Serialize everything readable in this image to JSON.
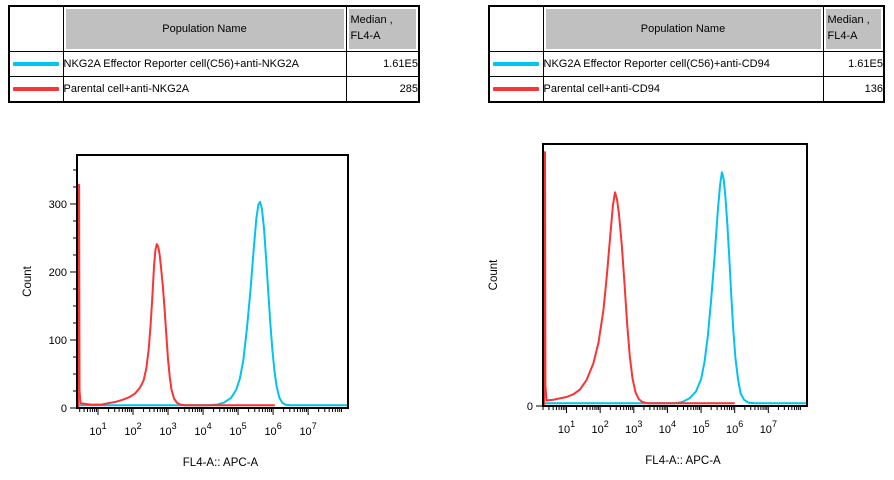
{
  "panels": [
    {
      "table": {
        "headers": {
          "name": "Population Name",
          "median_line1": "Median ,",
          "median_line2": "FL4-A"
        },
        "rows": [
          {
            "color": "#00C3EF",
            "name": "NKG2A Effector Reporter cell(C56)+anti-NKG2A",
            "median": "1.61E5"
          },
          {
            "color": "#F93434",
            "name": "Parental cell+anti-NKG2A",
            "median": "285"
          }
        ]
      }
    },
    {
      "table": {
        "headers": {
          "name": "Population Name",
          "median_line1": "Median ,",
          "median_line2": "FL4-A"
        },
        "rows": [
          {
            "color": "#00C3EF",
            "name": "NKG2A Effector Reporter cell(C56)+anti-CD94",
            "median": "1.61E5"
          },
          {
            "color": "#F93434",
            "name": "Parental cell+anti-CD94",
            "median": "136"
          }
        ]
      }
    }
  ],
  "chart_data": [
    {
      "type": "line",
      "title": "",
      "xlabel": "FL4-A:: APC-A",
      "ylabel": "Count",
      "x_scale": "log10",
      "xlim_log10": [
        0.4,
        8.14
      ],
      "ylim": [
        0,
        372
      ],
      "yticks": [
        0,
        100,
        200,
        300
      ],
      "ytick_minor_step": 25,
      "xticks_log10": [
        1,
        2,
        3,
        4,
        5,
        6,
        7
      ],
      "grid": false,
      "legend_position": "table-above",
      "series": [
        {
          "name": "NKG2A Effector Reporter cell(C56)+anti-NKG2A",
          "color": "#00C3EF",
          "median": "1.61E5",
          "points": [
            [
              0.42,
              4
            ],
            [
              4.2,
              4
            ],
            [
              4.4,
              5
            ],
            [
              4.6,
              8
            ],
            [
              4.8,
              15
            ],
            [
              4.95,
              27
            ],
            [
              5.05,
              43
            ],
            [
              5.15,
              70
            ],
            [
              5.25,
              115
            ],
            [
              5.35,
              170
            ],
            [
              5.45,
              235
            ],
            [
              5.52,
              278
            ],
            [
              5.58,
              299
            ],
            [
              5.63,
              303
            ],
            [
              5.68,
              293
            ],
            [
              5.74,
              264
            ],
            [
              5.8,
              220
            ],
            [
              5.86,
              172
            ],
            [
              5.92,
              125
            ],
            [
              5.98,
              85
            ],
            [
              6.04,
              54
            ],
            [
              6.1,
              32
            ],
            [
              6.18,
              15
            ],
            [
              6.26,
              8
            ],
            [
              6.35,
              5
            ],
            [
              6.5,
              4
            ],
            [
              8.12,
              4
            ]
          ]
        },
        {
          "name": "Parental cell+anti-NKG2A",
          "color": "#F93434",
          "median": "285",
          "points": [
            [
              0.43,
              0
            ],
            [
              0.44,
              328
            ],
            [
              0.46,
              328
            ],
            [
              0.47,
              26
            ],
            [
              0.5,
              7
            ],
            [
              0.8,
              5
            ],
            [
              1.1,
              5
            ],
            [
              1.3,
              7
            ],
            [
              1.5,
              9
            ],
            [
              1.7,
              12
            ],
            [
              1.9,
              16
            ],
            [
              2.05,
              21
            ],
            [
              2.2,
              30
            ],
            [
              2.3,
              40
            ],
            [
              2.38,
              58
            ],
            [
              2.45,
              88
            ],
            [
              2.5,
              120
            ],
            [
              2.55,
              162
            ],
            [
              2.6,
              208
            ],
            [
              2.64,
              232
            ],
            [
              2.68,
              241
            ],
            [
              2.72,
              237
            ],
            [
              2.76,
              226
            ],
            [
              2.8,
              207
            ],
            [
              2.85,
              180
            ],
            [
              2.9,
              147
            ],
            [
              2.95,
              108
            ],
            [
              3.0,
              72
            ],
            [
              3.05,
              45
            ],
            [
              3.1,
              27
            ],
            [
              3.17,
              14
            ],
            [
              3.25,
              8
            ],
            [
              3.35,
              5
            ],
            [
              3.5,
              4
            ],
            [
              6.05,
              4
            ]
          ]
        }
      ]
    },
    {
      "type": "line",
      "title": "",
      "xlabel": "FL4-A:: APC-A",
      "ylabel": "Count",
      "x_scale": "log10",
      "xlim_log10": [
        0.3,
        8.15
      ],
      "ylim": [
        0,
        380
      ],
      "yticks": [
        0
      ],
      "ytick_minor_step": null,
      "xticks_log10": [
        1,
        2,
        3,
        4,
        5,
        6,
        7
      ],
      "grid": false,
      "legend_position": "table-above",
      "series": [
        {
          "name": "NKG2A Effector Reporter cell(C56)+anti-CD94",
          "color": "#00C3EF",
          "median": "1.61E5",
          "points": [
            [
              0.33,
              4
            ],
            [
              4.25,
              4
            ],
            [
              4.45,
              6
            ],
            [
              4.65,
              11
            ],
            [
              4.85,
              21
            ],
            [
              5.0,
              39
            ],
            [
              5.1,
              63
            ],
            [
              5.2,
              101
            ],
            [
              5.3,
              155
            ],
            [
              5.4,
              215
            ],
            [
              5.5,
              285
            ],
            [
              5.57,
              322
            ],
            [
              5.62,
              339
            ],
            [
              5.67,
              330
            ],
            [
              5.72,
              305
            ],
            [
              5.78,
              265
            ],
            [
              5.84,
              215
            ],
            [
              5.9,
              160
            ],
            [
              5.96,
              110
            ],
            [
              6.02,
              70
            ],
            [
              6.1,
              38
            ],
            [
              6.18,
              18
            ],
            [
              6.28,
              9
            ],
            [
              6.4,
              5
            ],
            [
              6.6,
              4
            ],
            [
              8.13,
              4
            ]
          ]
        },
        {
          "name": "Parental cell+anti-CD94",
          "color": "#F93434",
          "median": "136",
          "points": [
            [
              0.33,
              0
            ],
            [
              0.34,
              368
            ],
            [
              0.36,
              368
            ],
            [
              0.37,
              30
            ],
            [
              0.4,
              8
            ],
            [
              0.6,
              9
            ],
            [
              0.8,
              11
            ],
            [
              1.0,
              13
            ],
            [
              1.2,
              17
            ],
            [
              1.4,
              24
            ],
            [
              1.6,
              38
            ],
            [
              1.8,
              62
            ],
            [
              1.95,
              92
            ],
            [
              2.1,
              140
            ],
            [
              2.2,
              190
            ],
            [
              2.3,
              248
            ],
            [
              2.38,
              292
            ],
            [
              2.44,
              310
            ],
            [
              2.5,
              300
            ],
            [
              2.56,
              278
            ],
            [
              2.64,
              235
            ],
            [
              2.72,
              180
            ],
            [
              2.8,
              120
            ],
            [
              2.88,
              72
            ],
            [
              2.96,
              40
            ],
            [
              3.05,
              20
            ],
            [
              3.15,
              10
            ],
            [
              3.25,
              6
            ],
            [
              3.4,
              4
            ],
            [
              6.0,
              4
            ]
          ]
        }
      ]
    }
  ]
}
